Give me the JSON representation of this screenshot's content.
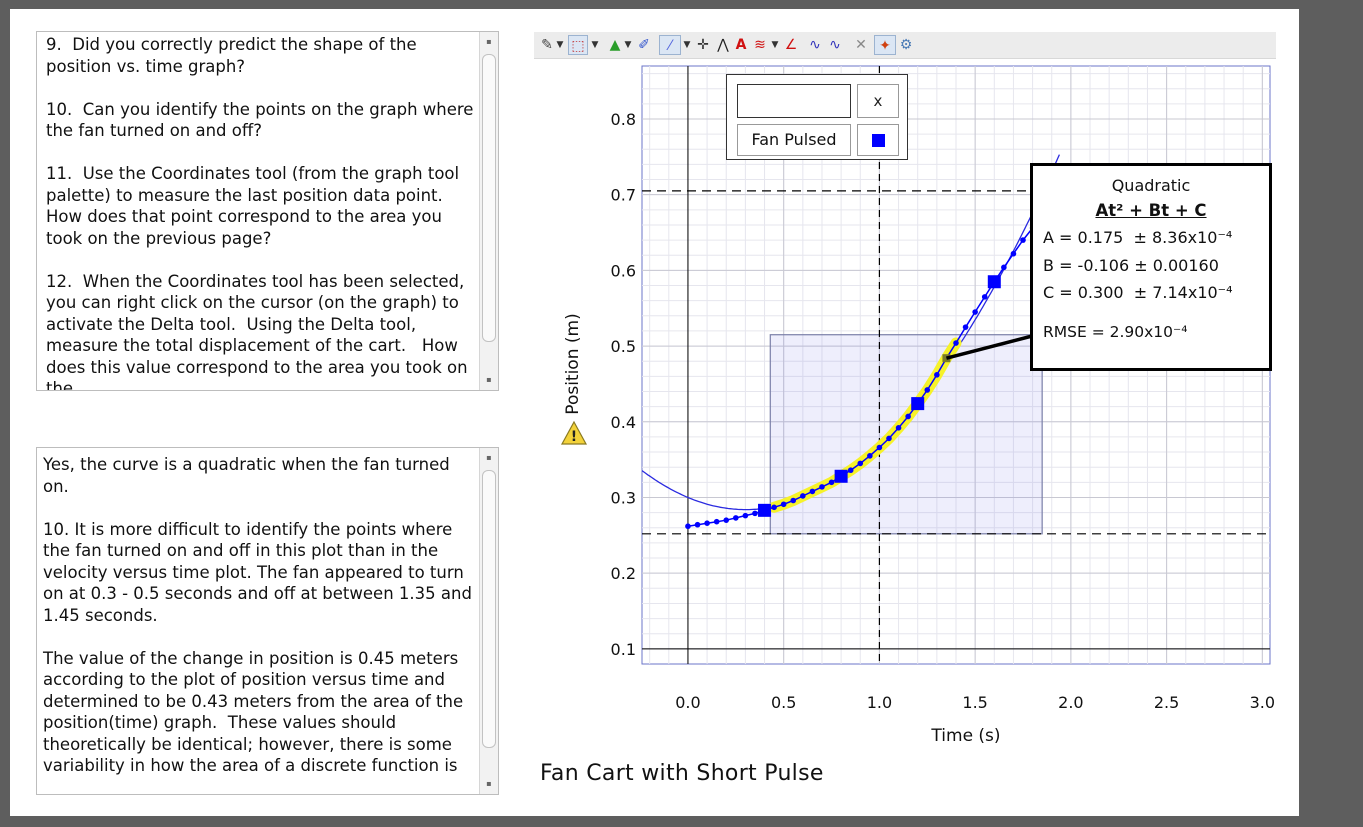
{
  "questions_text": "9.  Did you correctly predict the shape of the position vs. time graph?\n\n10.  Can you identify the points on the graph where the fan turned on and off?\n\n11.  Use the Coordinates tool (from the graph tool palette) to measure the last position data point.  How does that point correspond to the area you took on the previous page?\n\n12.  When the Coordinates tool has been selected, you can right click on the cursor (on the graph) to activate the Delta tool.  Using the Delta tool, measure the total displacement of the cart.   How does this value correspond to the area you took on the",
  "answer_text": "Yes, the curve is a quadratic when the fan turned on.\n\n10. It is more difficult to identify the points where the fan turned on and off in this plot than in the velocity versus time plot. The fan appeared to turn on at 0.3 - 0.5 seconds and off at between 1.35 and 1.45 seconds.\n\nThe value of the change in position is 0.45 meters according to the plot of position versus time and determined to be 0.43 meters from the area of the position(time) graph.  These values should theoretically be identical; however, there is some variability in how the area of a discrete function is",
  "caption": "Fan Cart with Short Pulse",
  "toolbar_icons": [
    "edit-icon",
    "dropdown-icon",
    "region-select-icon",
    "dropdown-icon",
    "color-icon",
    "dropdown-icon",
    "brush-icon",
    "line-tool-icon",
    "dropdown-icon",
    "crosshair-icon",
    "peak-icon",
    "text-icon",
    "noise-icon",
    "dropdown-icon",
    "tangent-icon",
    "fit-icon",
    "fit-alt-icon",
    "delete-icon",
    "pin-icon",
    "settings-icon"
  ],
  "legend": {
    "input_value": "",
    "close_label": "x",
    "series_label": "Fan Pulsed",
    "series_color": "#0000ff"
  },
  "fit_box": {
    "title": "Quadratic",
    "equation": "At² + Bt + C",
    "lines": [
      "A = 0.175  ± 8.36x10⁻⁴",
      "B = -0.106 ± 0.00160",
      "C = 0.300  ± 7.14x10⁻⁴"
    ],
    "rmse": "RMSE = 2.90x10⁻⁴"
  },
  "chart_data": {
    "type": "scatter",
    "title": "",
    "xlabel": "Time (s)",
    "ylabel": "Position (m)",
    "xlim": [
      -0.24,
      3.04
    ],
    "ylim": [
      0.08,
      0.87
    ],
    "xticks": [
      0.0,
      0.5,
      1.0,
      1.5,
      2.0,
      2.5,
      3.0
    ],
    "xtick_labels": [
      "0.0",
      "0.5",
      "1.0",
      "1.5",
      "2.0",
      "2.5",
      "3.0"
    ],
    "yticks": [
      0.1,
      0.2,
      0.3,
      0.4,
      0.5,
      0.6,
      0.7,
      0.8
    ],
    "ytick_labels": [
      "0.1",
      "0.2",
      "0.3",
      "0.4",
      "0.5",
      "0.6",
      "0.7",
      "0.8"
    ],
    "grid": true,
    "series": [
      {
        "name": "Fan Pulsed",
        "color": "#0000ff",
        "x": [
          0.0,
          0.05,
          0.1,
          0.15,
          0.2,
          0.25,
          0.3,
          0.35,
          0.4,
          0.45,
          0.5,
          0.55,
          0.6,
          0.65,
          0.7,
          0.75,
          0.8,
          0.85,
          0.9,
          0.95,
          1.0,
          1.05,
          1.1,
          1.15,
          1.2,
          1.25,
          1.3,
          1.35,
          1.4,
          1.45,
          1.5,
          1.55,
          1.6,
          1.65,
          1.7,
          1.75,
          1.8
        ],
        "y": [
          0.262,
          0.264,
          0.266,
          0.268,
          0.27,
          0.273,
          0.276,
          0.279,
          0.283,
          0.287,
          0.291,
          0.296,
          0.302,
          0.308,
          0.314,
          0.32,
          0.328,
          0.336,
          0.345,
          0.355,
          0.366,
          0.378,
          0.392,
          0.407,
          0.424,
          0.442,
          0.462,
          0.484,
          0.504,
          0.525,
          0.545,
          0.565,
          0.585,
          0.604,
          0.622,
          0.64,
          0.656
        ]
      }
    ],
    "fit": {
      "type": "quadratic",
      "A": 0.175,
      "B": -0.106,
      "C": 0.3
    },
    "selection": {
      "x": [
        0.43,
        1.43
      ]
    },
    "integral_region": {
      "x": [
        0.43,
        1.85
      ],
      "y": [
        0.252,
        0.515
      ]
    },
    "reference_lines": {
      "vertical_x": 1.0,
      "horizontal_y": [
        0.705,
        0.252
      ]
    }
  }
}
